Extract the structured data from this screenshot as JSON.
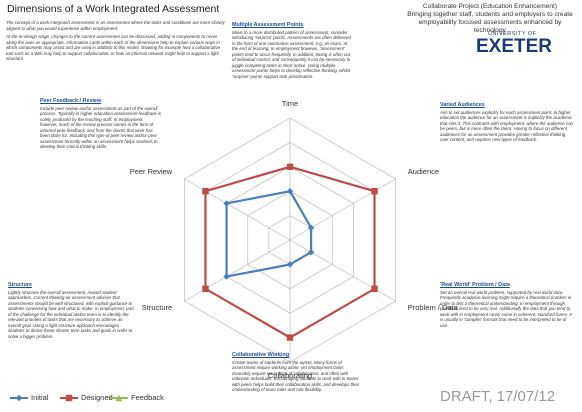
{
  "header": {
    "title": "Dimensions of a Work Integrated Assessment",
    "project": "Collaborate Project (Education Enhancement)",
    "tagline": "Bringing together staff, students and employers to create employability focused assessments enhanced by technology",
    "logo_small": "UNIVERSITY OF",
    "logo_big": "EXETER"
  },
  "intro": [
    "The concept of a work integrated assessment is an assessment where the tasks and conditions are more closely aligned to what you would experience within employment.",
    "At the re-design stage, changes to the current assessment can be discussed, adding in components to move along the axes as appropriate. Information cards within each of the dimensions help to explain various ways in which components may assist and are used in addition to this model, showing for example how a collaborative tool such as a Wiki may help to support collaboration, or how an informal network might help to support a light structure."
  ],
  "boxes": [
    {
      "heading": "Multiple Assessment Points",
      "text": "Move to a more distributed pattern of assessment, consider introducing 'surprise' points. Assessments are often delivered in the form of one summative assessment, e.g. an exam, at the end of learning. In employment however, 'assessment' points tend to occur frequently. In addition, timing is often out of individual control, and consequently it can be necessary to juggle competing tasks at short notice. Using multiple assessment points helps to develop reflective thinking, whilst 'surprise' points support task prioritisation."
    },
    {
      "heading": "Varied Audiences",
      "text": "Aim to set audiences explicitly for each assessment point. In higher education the audience for an assessment is implicitly the academic that sets it. This contrasts with employment, where the audience can be peers, but is more often the client. Having to focus on different audiences for an assessment provides greater reflective thinking over content, and requires new types of feedback."
    },
    {
      "heading": "Peer Feedback / Review",
      "text": "Include peer review and/or assessment as part of the overall process. Typically in higher education assessment feedback is solely produced by the teaching staff. In employment, however, much of the review process comes in the form of informal peer feedback, and from the clients that work has been done for. Including this type of peer review and/or peer assessment formally within an assessment helps students to develop their critical thinking skills."
    },
    {
      "heading": "Structure",
      "text": "Lightly structure the overall assessment, reward student approaches. Current thinking on assessment advises that assessments should be well structured, with explicit guidance to students concerning how and what to make. In employment, part of the challenge for the individual and/or team is to identify the relevant priorities of tasks that are necessary to achieve an overall goal. Using a light structure approach encourages students to derive these shorter term tasks and goals in order to solve a bigger problem."
    },
    {
      "heading": "'Real World' Problem / Data",
      "text": "Set an overall real world problem, supported by real world data. Frequently academic learning might require a theoretical problem in order to test a theoretical understanding. In employment through problems tend to be very real. Additionally the data that you tend to work with in employment rarely come in coherent, standard forms. It is usually in 'complex' formats that need to be interpreted to be of use."
    },
    {
      "heading": "Collaborative Working",
      "text": "Create teams of students from the outset. Many forms of assessment require working alone, yet employment tasks invariably require some form of collaboration, and often with unknown individuals. Encouraging students to work with in teams with peers helps build their collaboration skills, and develops their understanding of team roles and role flexibility."
    }
  ],
  "draft": "DRAFT, 17/07/12",
  "chart_data": {
    "type": "radar",
    "categories": [
      "Time",
      "Audience",
      "Problem / Data",
      "Collaborating",
      "Structure",
      "Peer Review"
    ],
    "series": [
      {
        "name": "Initial",
        "color": "#4a7ebb",
        "marker": "diamond",
        "values": [
          2,
          1,
          1,
          1,
          3,
          3
        ]
      },
      {
        "name": "Designed",
        "color": "#be4b48",
        "marker": "square",
        "values": [
          3,
          4,
          4,
          4,
          4,
          4
        ]
      },
      {
        "name": "Feedback",
        "color": "#98b954",
        "marker": "triangle",
        "values": [
          null,
          null,
          null,
          null,
          null,
          null
        ]
      }
    ],
    "rlim": [
      0,
      5
    ],
    "rticks": [
      1,
      2,
      3,
      4,
      5
    ],
    "grid": true,
    "legend": "bottom-left"
  }
}
